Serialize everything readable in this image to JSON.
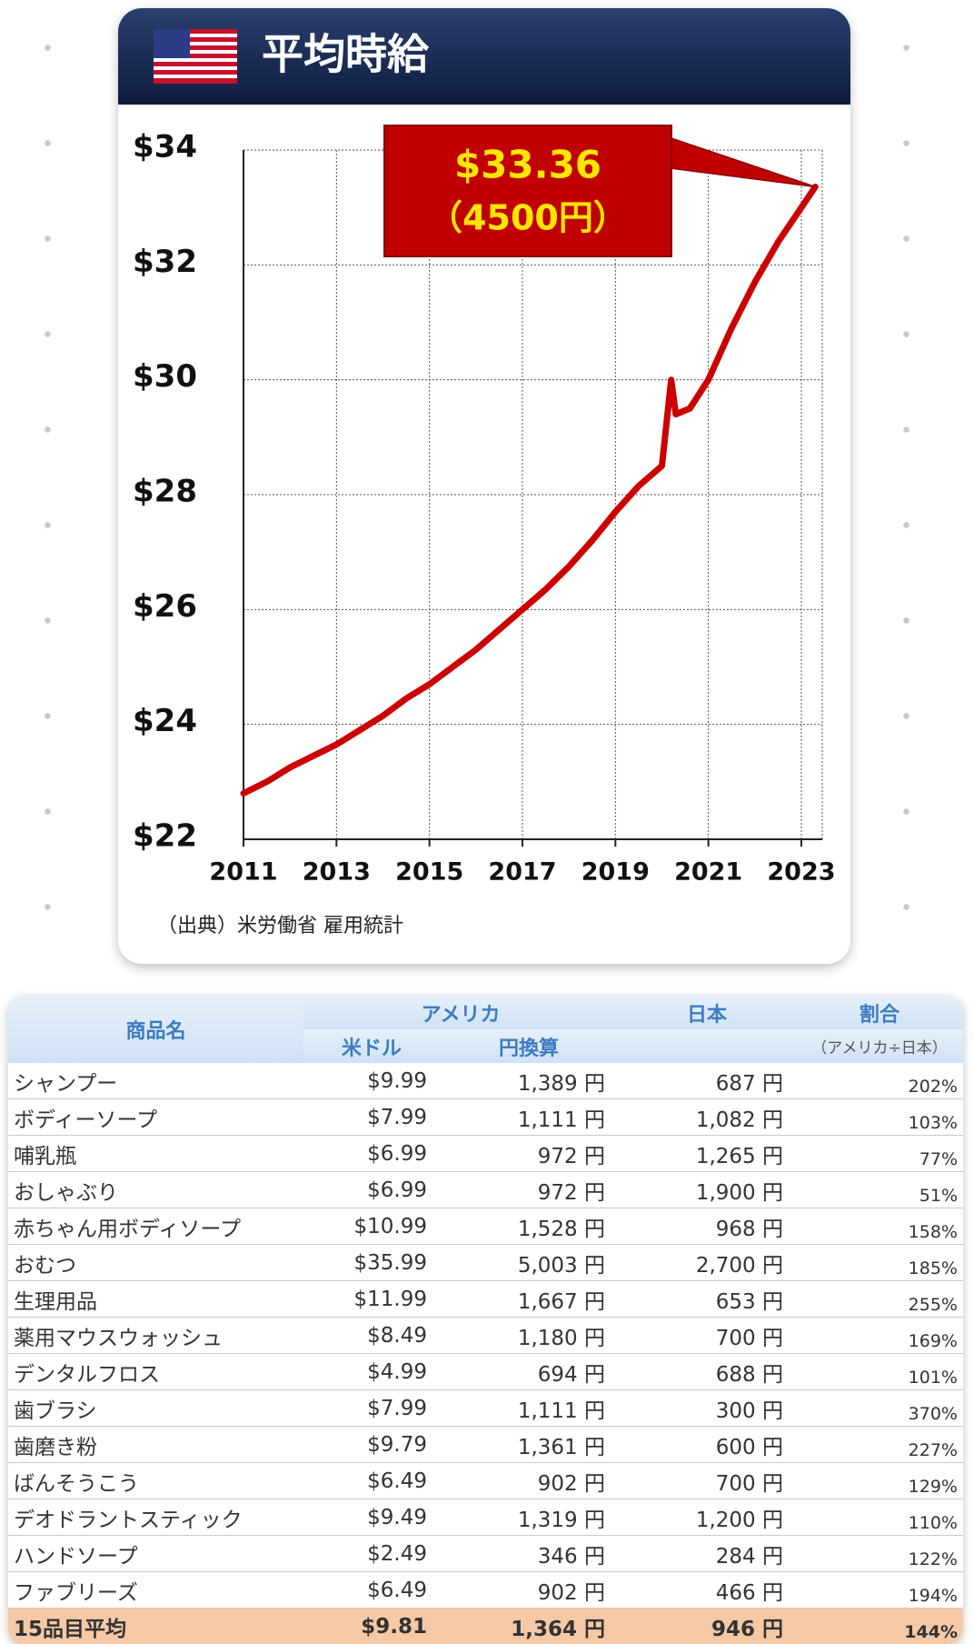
{
  "chart_data": {
    "type": "line",
    "title": "平均時給",
    "x": [
      2011,
      2011.5,
      2012,
      2012.5,
      2013,
      2013.5,
      2014,
      2014.5,
      2015,
      2015.5,
      2016,
      2016.5,
      2017,
      2017.5,
      2018,
      2018.5,
      2019,
      2019.5,
      2020,
      2020.2,
      2020.3,
      2020.6,
      2021,
      2021.5,
      2022,
      2022.5,
      2023,
      2023.3
    ],
    "series": [
      {
        "color": "#cc0000",
        "values": [
          22.8,
          23.0,
          23.25,
          23.45,
          23.65,
          23.9,
          24.15,
          24.45,
          24.7,
          25.0,
          25.3,
          25.65,
          26.0,
          26.35,
          26.75,
          27.2,
          27.7,
          28.15,
          28.5,
          30.0,
          29.4,
          29.5,
          30.0,
          30.9,
          31.7,
          32.4,
          33.0,
          33.36
        ]
      }
    ],
    "xlim": [
      2011,
      2023.45
    ],
    "xticks": [
      2011,
      2013,
      2015,
      2017,
      2019,
      2021,
      2023
    ],
    "ylim": [
      22,
      34
    ],
    "yticks": [
      {
        "value": 22,
        "label": "$22"
      },
      {
        "value": 24,
        "label": "$24"
      },
      {
        "value": 26,
        "label": "$26"
      },
      {
        "value": 28,
        "label": "$28"
      },
      {
        "value": 30,
        "label": "$30"
      },
      {
        "value": 32,
        "label": "$32"
      },
      {
        "value": 34,
        "label": "$34"
      }
    ],
    "grid": true,
    "annotation": {
      "value": 33.36,
      "label": "$33.36",
      "yen": "（4500円）"
    },
    "source": "（出典）米労働省 雇用統計"
  },
  "table": {
    "header": {
      "name": "商品名",
      "usa": "アメリカ",
      "usd": "米ドル",
      "jpy": "円換算",
      "japan": "日本",
      "ratio": "割合",
      "ratio_note": "（アメリカ÷日本）"
    },
    "rows": [
      [
        "シャンプー",
        "$9.99",
        "1,389 円",
        "687 円",
        "202%"
      ],
      [
        "ボディーソープ",
        "$7.99",
        "1,111 円",
        "1,082 円",
        "103%"
      ],
      [
        "哺乳瓶",
        "$6.99",
        "972 円",
        "1,265 円",
        "77%"
      ],
      [
        "おしゃぶり",
        "$6.99",
        "972 円",
        "1,900 円",
        "51%"
      ],
      [
        "赤ちゃん用ボディソープ",
        "$10.99",
        "1,528 円",
        "968 円",
        "158%"
      ],
      [
        "おむつ",
        "$35.99",
        "5,003 円",
        "2,700 円",
        "185%"
      ],
      [
        "生理用品",
        "$11.99",
        "1,667 円",
        "653 円",
        "255%"
      ],
      [
        "薬用マウスウォッシュ",
        "$8.49",
        "1,180 円",
        "700 円",
        "169%"
      ],
      [
        "デンタルフロス",
        "$4.99",
        "694 円",
        "688 円",
        "101%"
      ],
      [
        "歯ブラシ",
        "$7.99",
        "1,111 円",
        "300 円",
        "370%"
      ],
      [
        "歯磨き粉",
        "$9.79",
        "1,361 円",
        "600 円",
        "227%"
      ],
      [
        "ばんそうこう",
        "$6.49",
        "902 円",
        "700 円",
        "129%"
      ],
      [
        "デオドラントスティック",
        "$9.49",
        "1,319 円",
        "1,200 円",
        "110%"
      ],
      [
        "ハンドソープ",
        "$2.49",
        "346 円",
        "284 円",
        "122%"
      ],
      [
        "ファブリーズ",
        "$6.49",
        "902 円",
        "466 円",
        "194%"
      ]
    ],
    "footer": [
      "15品目平均",
      "$9.81",
      "1,364 円",
      "946 円",
      "144%"
    ]
  }
}
